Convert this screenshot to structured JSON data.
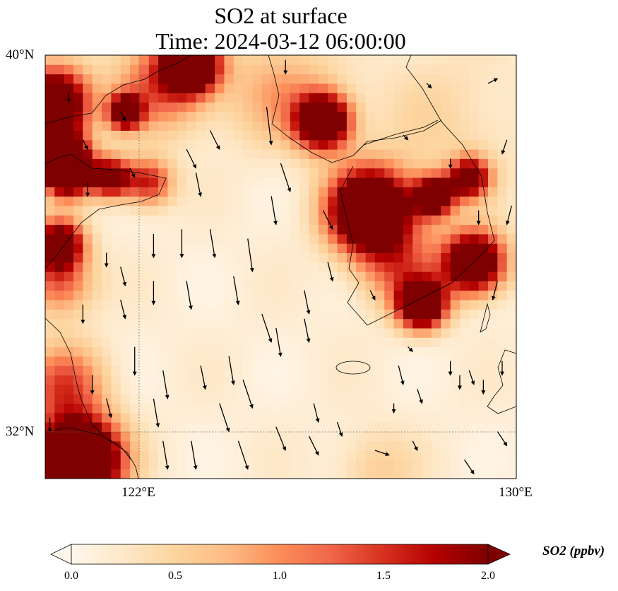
{
  "chart_data": {
    "type": "heatmap",
    "title": "SO2 at surface",
    "subtitle": "Time: 2024-03-12 06:00:00",
    "extent": {
      "lon": [
        120,
        130
      ],
      "lat": [
        31,
        40
      ]
    },
    "xticks": [
      {
        "value": 122,
        "label": "122°E"
      },
      {
        "value": 130,
        "label": "130°E"
      }
    ],
    "yticks": [
      {
        "value": 40,
        "label": "40°N"
      },
      {
        "value": 32,
        "label": "32°N"
      }
    ],
    "gridlines": "dotted at 122°E and 32°N",
    "colorbar": {
      "label": "SO2 (ppbv)",
      "range": [
        0,
        2
      ],
      "extend": "both",
      "ticks": [
        "0.0",
        "0.5",
        "1.0",
        "1.5",
        "2.0"
      ],
      "colors": [
        "#fff7ec",
        "#fee8c8",
        "#fdd49e",
        "#fdbb84",
        "#fc8d59",
        "#ef6548",
        "#d7301f",
        "#b30000",
        "#7f0000"
      ]
    },
    "background_value": 0.15,
    "hotspots": [
      [
        120.2,
        39.0,
        0.5,
        3.0
      ],
      [
        120.3,
        37.9,
        0.4,
        2.5
      ],
      [
        123.1,
        39.8,
        0.4,
        3.0
      ],
      [
        122.5,
        39.4,
        0.7,
        1.2
      ],
      [
        121.7,
        38.8,
        0.25,
        2.5
      ],
      [
        120.5,
        37.5,
        0.35,
        2.5
      ],
      [
        121.4,
        37.4,
        0.3,
        2.2
      ],
      [
        122.2,
        37.3,
        0.35,
        1.5
      ],
      [
        120.3,
        36.0,
        0.35,
        2.5
      ],
      [
        120.3,
        35.2,
        0.5,
        1.2
      ],
      [
        120.4,
        33.0,
        0.6,
        1.2
      ],
      [
        125.9,
        38.6,
        0.4,
        3.0
      ],
      [
        126.9,
        36.7,
        0.6,
        3.5
      ],
      [
        128.25,
        37.0,
        0.3,
        2.5
      ],
      [
        129.0,
        37.4,
        0.3,
        2.2
      ],
      [
        129.1,
        35.6,
        0.45,
        3.0
      ],
      [
        128.0,
        34.7,
        0.35,
        3.0
      ],
      [
        127.5,
        35.5,
        0.6,
        1.0
      ],
      [
        128.5,
        38.5,
        1.2,
        0.3
      ],
      [
        120.7,
        31.4,
        0.6,
        4.0
      ],
      [
        127.0,
        31.2,
        0.6,
        0.4
      ],
      [
        125.0,
        39.2,
        0.8,
        0.7
      ]
    ],
    "wind_vectors": [
      [
        124.7,
        38.9,
        1,
        -8
      ],
      [
        125.1,
        39.9,
        0,
        -3
      ],
      [
        123.5,
        38.4,
        2,
        -4
      ],
      [
        123.0,
        38.0,
        2,
        -4
      ],
      [
        123.2,
        37.5,
        1,
        -5
      ],
      [
        125.0,
        37.7,
        2,
        -6
      ],
      [
        124.8,
        37.0,
        1,
        -6
      ],
      [
        125.9,
        36.7,
        2,
        -4
      ],
      [
        122.3,
        36.2,
        0,
        -5
      ],
      [
        122.9,
        36.3,
        0,
        -6
      ],
      [
        123.5,
        36.3,
        1,
        -6
      ],
      [
        124.3,
        36.1,
        1,
        -7
      ],
      [
        121.3,
        35.8,
        0,
        -3
      ],
      [
        121.6,
        35.5,
        1,
        -4
      ],
      [
        122.3,
        35.2,
        0,
        -5
      ],
      [
        123.0,
        35.2,
        1,
        -6
      ],
      [
        124.0,
        35.3,
        1,
        -6
      ],
      [
        121.6,
        34.8,
        1,
        -4
      ],
      [
        120.8,
        34.7,
        0,
        -4
      ],
      [
        124.6,
        34.5,
        2,
        -6
      ],
      [
        124.9,
        34.2,
        1,
        -6
      ],
      [
        125.5,
        35.0,
        1,
        -5
      ],
      [
        125.5,
        34.4,
        1,
        -5
      ],
      [
        126.0,
        35.6,
        1,
        -4
      ],
      [
        121.9,
        33.8,
        0,
        -6
      ],
      [
        122.5,
        33.3,
        1,
        -6
      ],
      [
        123.3,
        33.4,
        1,
        -5
      ],
      [
        123.9,
        33.6,
        1,
        -6
      ],
      [
        124.2,
        33.1,
        2,
        -6
      ],
      [
        121.0,
        33.2,
        0,
        -4
      ],
      [
        121.3,
        32.7,
        1,
        -4
      ],
      [
        122.3,
        32.7,
        1,
        -6
      ],
      [
        123.7,
        32.6,
        2,
        -6
      ],
      [
        124.9,
        32.1,
        2,
        -5
      ],
      [
        125.7,
        32.6,
        1,
        -4
      ],
      [
        126.2,
        32.2,
        1,
        -3
      ],
      [
        125.6,
        31.9,
        2,
        -4
      ],
      [
        124.1,
        31.8,
        2,
        -6
      ],
      [
        123.1,
        31.8,
        1,
        -6
      ],
      [
        122.5,
        31.8,
        1,
        -6
      ],
      [
        127.5,
        33.4,
        1,
        -4
      ],
      [
        127.9,
        32.9,
        1,
        -3
      ],
      [
        127.4,
        32.6,
        0,
        -2
      ],
      [
        127.8,
        31.8,
        1,
        -2
      ],
      [
        127.0,
        31.6,
        3,
        -1
      ],
      [
        128.9,
        31.4,
        2,
        -3
      ],
      [
        129.6,
        32.0,
        2,
        -3
      ],
      [
        128.6,
        33.5,
        0,
        -3
      ],
      [
        128.8,
        33.2,
        0,
        -3
      ],
      [
        129.0,
        33.3,
        1,
        -3
      ],
      [
        129.3,
        33.1,
        0,
        -3
      ],
      [
        129.7,
        33.5,
        0,
        -3
      ],
      [
        129.2,
        36.7,
        0,
        -3
      ],
      [
        129.9,
        36.8,
        -1,
        -4
      ],
      [
        129.8,
        38.2,
        -1,
        -3
      ],
      [
        129.4,
        39.4,
        2,
        1
      ],
      [
        128.1,
        39.4,
        1,
        -1
      ],
      [
        128.6,
        37.8,
        0,
        -2
      ],
      [
        127.6,
        38.3,
        1,
        -1
      ],
      [
        129.6,
        35.2,
        -1,
        -4
      ],
      [
        126.9,
        35.0,
        1,
        -2
      ],
      [
        127.7,
        33.8,
        1,
        -1
      ],
      [
        121.8,
        37.6,
        1,
        -2
      ],
      [
        120.9,
        37.3,
        0,
        -3
      ],
      [
        120.5,
        39.2,
        0,
        -2
      ],
      [
        120.8,
        38.2,
        1,
        -2
      ],
      [
        121.6,
        38.8,
        1,
        -2
      ],
      [
        120.1,
        32.3,
        0,
        -3
      ]
    ]
  }
}
